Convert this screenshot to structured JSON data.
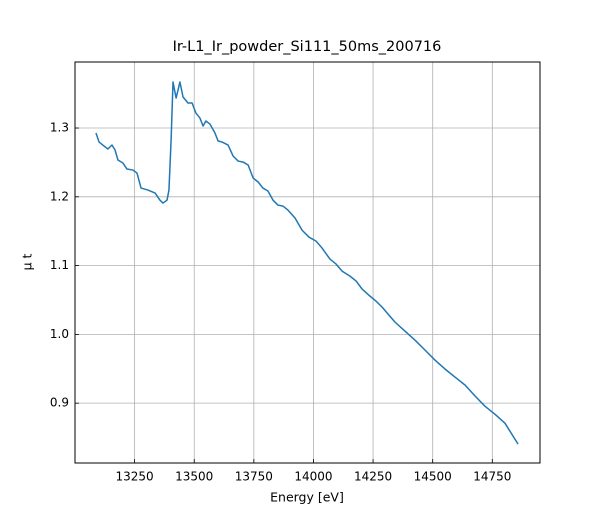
{
  "chart_data": {
    "type": "line",
    "title": "Ir-L1_Ir_powder_Si111_50ms_200716",
    "xlabel": "Energy [eV]",
    "ylabel": "μ t",
    "x": [
      13088,
      13101,
      13122,
      13138,
      13155,
      13168,
      13180,
      13201,
      13218,
      13243,
      13260,
      13277,
      13306,
      13336,
      13356,
      13369,
      13386,
      13394,
      13403,
      13411,
      13424,
      13440,
      13453,
      13474,
      13491,
      13507,
      13524,
      13537,
      13549,
      13566,
      13587,
      13600,
      13617,
      13642,
      13663,
      13684,
      13705,
      13726,
      13747,
      13768,
      13788,
      13809,
      13830,
      13851,
      13872,
      13893,
      13923,
      13952,
      13981,
      14011,
      14036,
      14069,
      14095,
      14120,
      14153,
      14179,
      14204,
      14237,
      14262,
      14288,
      14313,
      14342,
      14384,
      14426,
      14468,
      14510,
      14552,
      14594,
      14636,
      14678,
      14719,
      14761,
      14803,
      14858
    ],
    "series": [
      {
        "name": "μ t",
        "color": "#1f77b4",
        "values": [
          1.2927,
          1.2796,
          1.2738,
          1.2695,
          1.2753,
          1.268,
          1.2535,
          1.2491,
          1.2404,
          1.2389,
          1.2345,
          1.2127,
          1.2098,
          1.2055,
          1.1953,
          1.1909,
          1.1953,
          1.2098,
          1.2825,
          1.3669,
          1.3436,
          1.3669,
          1.3451,
          1.3364,
          1.3364,
          1.3218,
          1.3145,
          1.3029,
          1.3102,
          1.3058,
          1.2927,
          1.2811,
          1.2796,
          1.2753,
          1.2593,
          1.252,
          1.2505,
          1.2462,
          1.2273,
          1.2215,
          1.2127,
          1.2084,
          1.1953,
          1.188,
          1.1865,
          1.1807,
          1.1691,
          1.1516,
          1.1415,
          1.1356,
          1.1255,
          1.1095,
          1.1022,
          1.092,
          1.0847,
          1.0775,
          1.0658,
          1.0556,
          1.0484,
          1.0396,
          1.0295,
          1.0178,
          1.0047,
          0.9916,
          0.9771,
          0.9625,
          0.9495,
          0.9378,
          0.9262,
          0.9102,
          0.8956,
          0.884,
          0.8709,
          0.8404
        ]
      }
    ],
    "xlim": [
      13000,
      14950
    ],
    "xticks": [
      13250,
      13500,
      13750,
      14000,
      14250,
      14500,
      14750
    ],
    "ylim": [
      0.813,
      1.396
    ],
    "yticks": [
      0.9,
      {
        "value": 1,
        "label": "1.0"
      },
      1.1,
      1.2,
      1.3
    ],
    "grid": true
  }
}
